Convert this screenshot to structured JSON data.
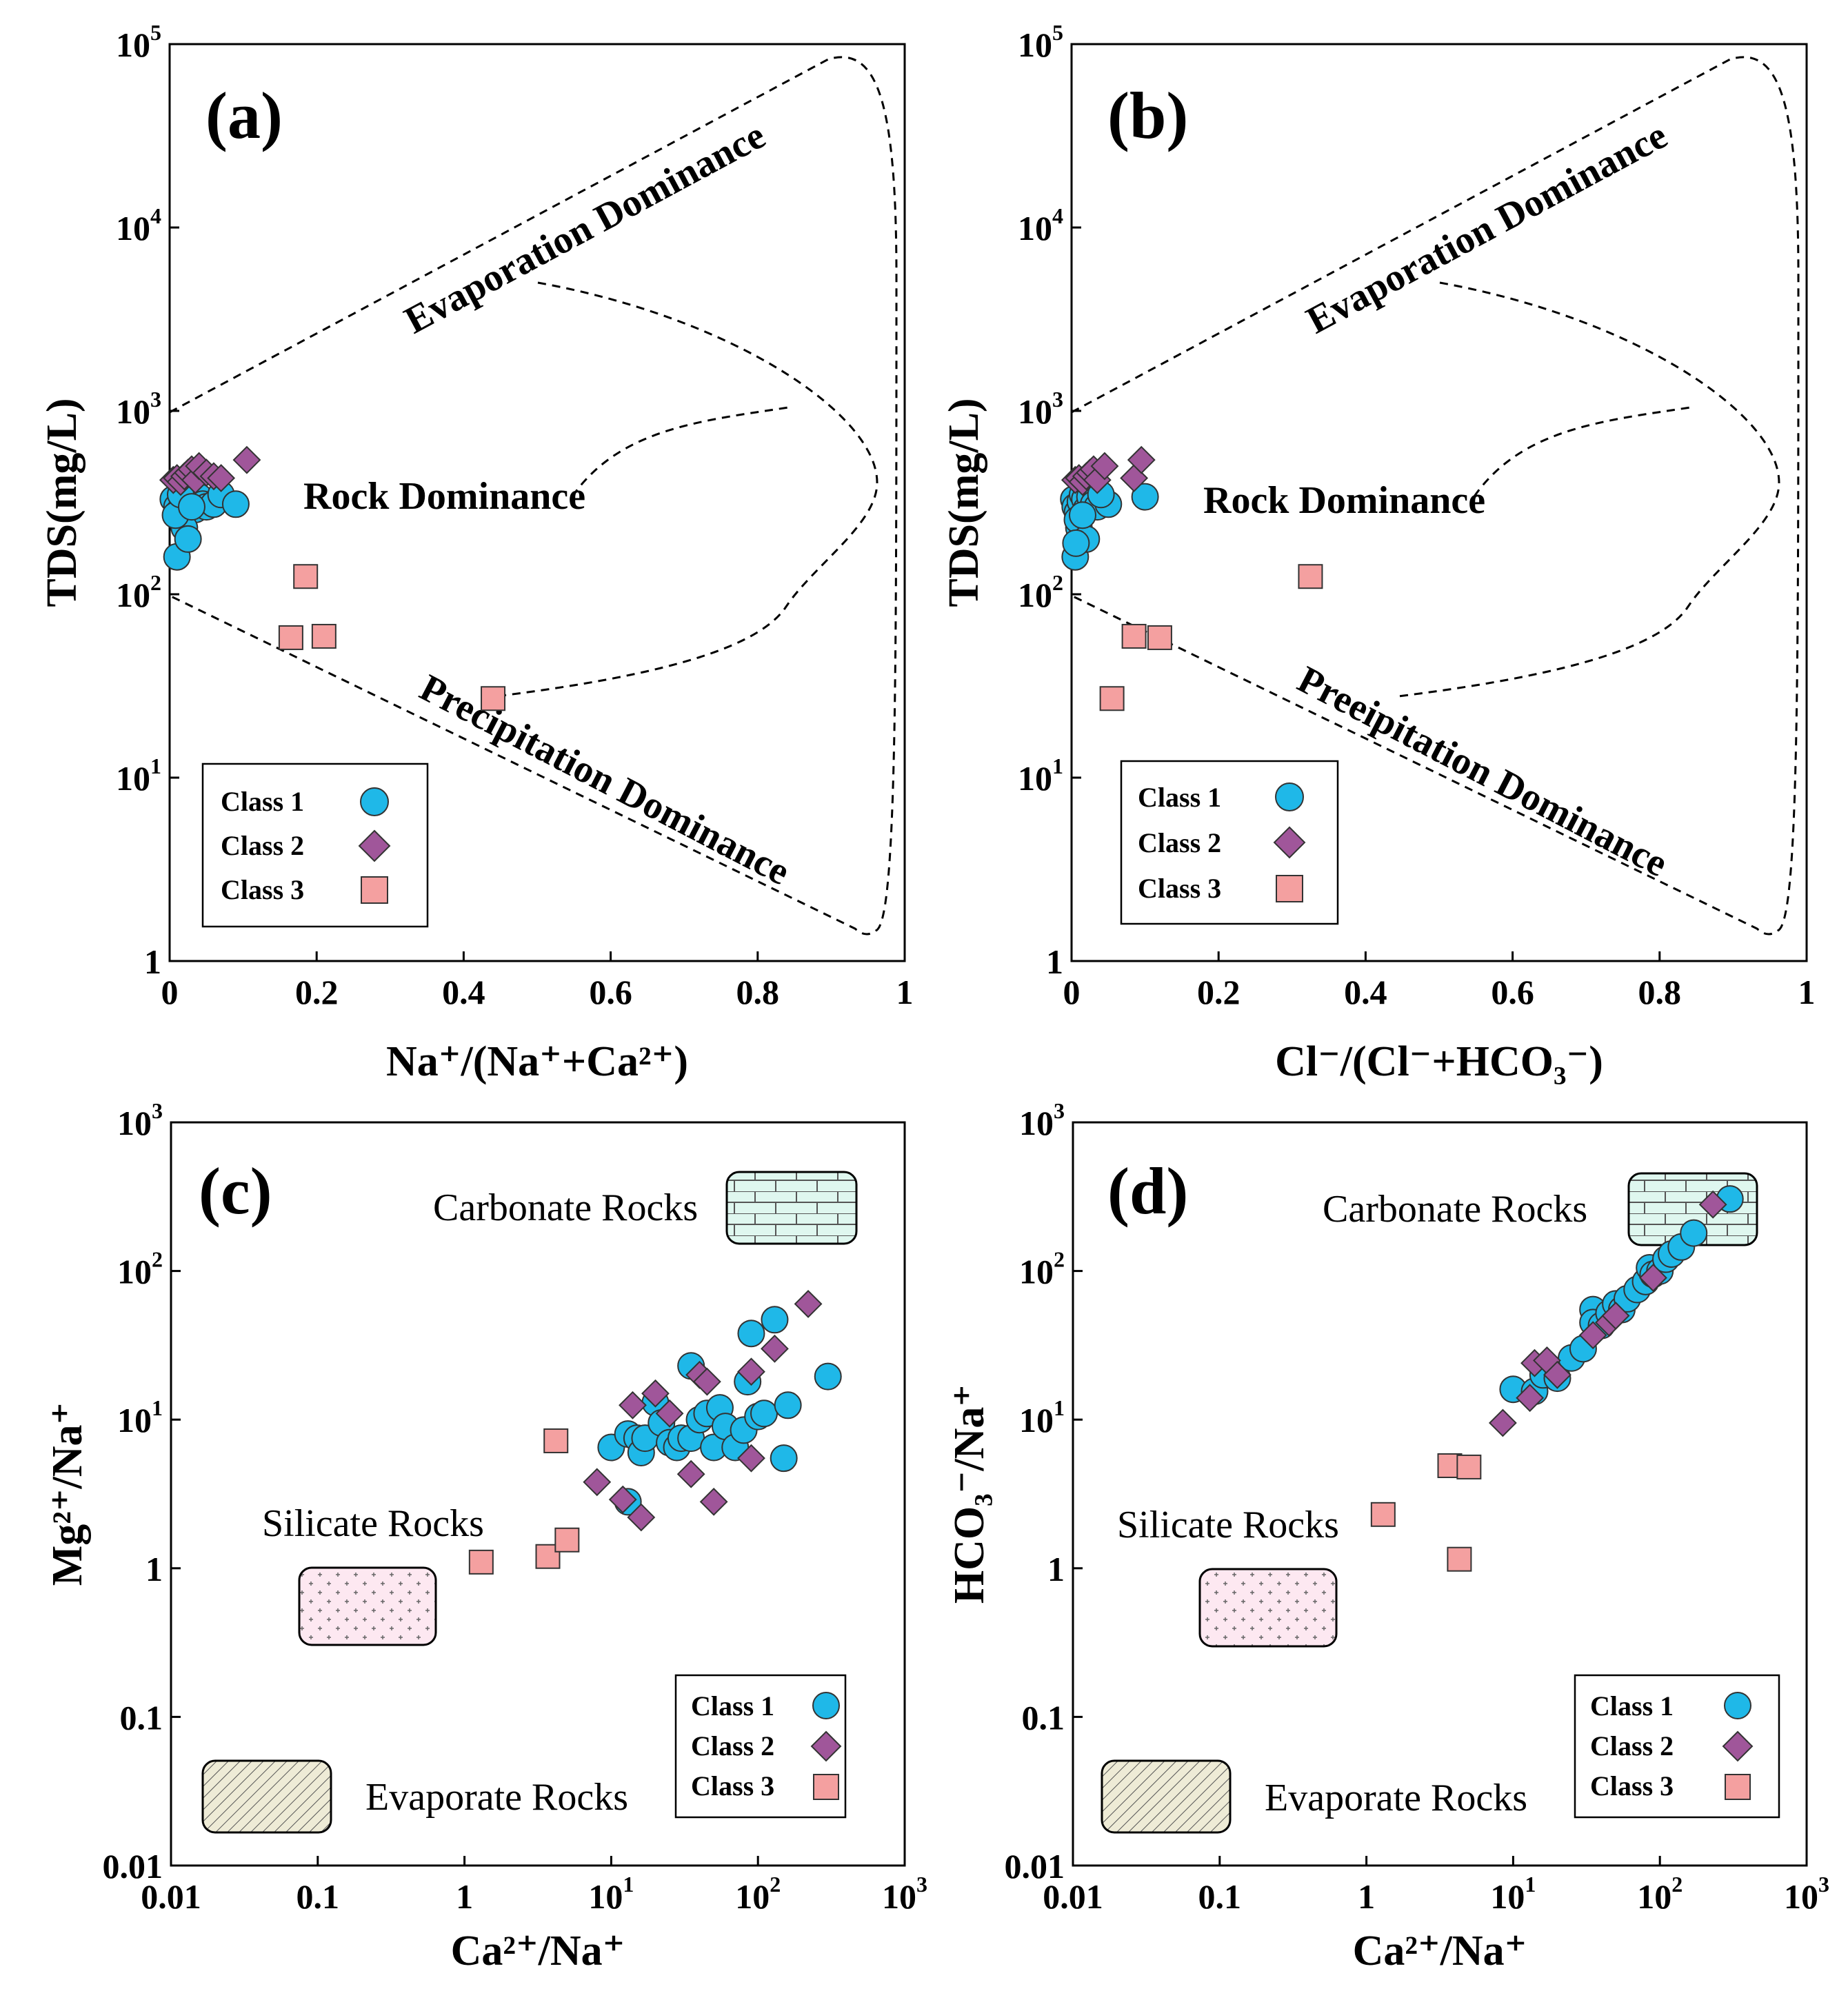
{
  "panels": [
    {
      "id": "a",
      "label": "(a)",
      "chart_data": {
        "type": "scatter",
        "xlabel": "Na⁺/(Na⁺+Ca²⁺)",
        "ylabel": "TDS(mg/L)",
        "xlim": [
          0,
          1
        ],
        "ylim": [
          1,
          100000
        ],
        "yscale": "log",
        "xticks": [
          "0",
          "0.2",
          "0.4",
          "0.6",
          "0.8",
          "1"
        ],
        "yticks": [
          "1",
          "10¹",
          "10²",
          "10³",
          "10⁴",
          "10⁵"
        ],
        "regions": [
          "Evaporation Dominance",
          "Rock Dominance",
          "Precipitation Dominance"
        ],
        "legend_position": "lower-left",
        "series": [
          {
            "name": "Class 1",
            "marker": "circle",
            "color": "#1fb8e8",
            "x": [
              0.005,
              0.01,
              0.012,
              0.015,
              0.02,
              0.025,
              0.03,
              0.035,
              0.04,
              0.045,
              0.05,
              0.06,
              0.07,
              0.09,
              0.01,
              0.02,
              0.008,
              0.015,
              0.025,
              0.03
            ],
            "y": [
              330,
              300,
              280,
              260,
              320,
              350,
              330,
              290,
              340,
              310,
              300,
              310,
              350,
              310,
              160,
              230,
              270,
              350,
              200,
              300
            ]
          },
          {
            "name": "Class 2",
            "marker": "diamond",
            "color": "#a0569a",
            "x": [
              0.005,
              0.01,
              0.015,
              0.02,
              0.025,
              0.03,
              0.035,
              0.04,
              0.05,
              0.06,
              0.07,
              0.105
            ],
            "y": [
              420,
              430,
              410,
              440,
              460,
              480,
              420,
              500,
              460,
              440,
              430,
              540
            ]
          },
          {
            "name": "Class 3",
            "marker": "square",
            "color": "#f4a0a0",
            "x": [
              0.165,
              0.185,
              0.21,
              0.44
            ],
            "y": [
              58,
              125,
              59,
              27
            ]
          }
        ]
      }
    },
    {
      "id": "b",
      "label": "(b)",
      "chart_data": {
        "type": "scatter",
        "xlabel": "Cl⁻/(Cl⁻+HCO₃⁻)",
        "ylabel": "TDS(mg/L)",
        "xlim": [
          0,
          1
        ],
        "ylim": [
          1,
          100000
        ],
        "yscale": "log",
        "xticks": [
          "0",
          "0.2",
          "0.4",
          "0.6",
          "0.8",
          "1"
        ],
        "yticks": [
          "1",
          "10¹",
          "10²",
          "10³",
          "10⁴",
          "10⁵"
        ],
        "regions": [
          "Evaporation Dominance",
          "Rock Dominance",
          "Preeipitation Dominance"
        ],
        "legend_position": "lower-left",
        "series": [
          {
            "name": "Class 1",
            "marker": "circle",
            "color": "#1fb8e8",
            "x": [
              0.003,
              0.005,
              0.008,
              0.01,
              0.012,
              0.015,
              0.018,
              0.02,
              0.025,
              0.03,
              0.035,
              0.05,
              0.1,
              0.005,
              0.01,
              0.008,
              0.02,
              0.04,
              0.015,
              0.006
            ],
            "y": [
              330,
              300,
              280,
              260,
              320,
              350,
              330,
              290,
              340,
              310,
              300,
              310,
              340,
              160,
              230,
              255,
              200,
              350,
              270,
              190
            ]
          },
          {
            "name": "Class 2",
            "marker": "diamond",
            "color": "#a0569a",
            "x": [
              0.005,
              0.01,
              0.015,
              0.02,
              0.025,
              0.03,
              0.035,
              0.045,
              0.085,
              0.095
            ],
            "y": [
              420,
              430,
              410,
              440,
              460,
              480,
              420,
              500,
              430,
              540
            ]
          },
          {
            "name": "Class 3",
            "marker": "square",
            "color": "#f4a0a0",
            "x": [
              0.055,
              0.085,
              0.12,
              0.325
            ],
            "y": [
              27,
              59,
              58,
              125
            ]
          }
        ]
      }
    },
    {
      "id": "c",
      "label": "(c)",
      "chart_data": {
        "type": "scatter",
        "xlabel": "Ca²⁺/Na⁺",
        "ylabel": "Mg²⁺/Na⁺",
        "xlim": [
          0.01,
          1000
        ],
        "ylim": [
          0.01,
          1000
        ],
        "xscale": "log",
        "yscale": "log",
        "xticks": [
          "0.01",
          "0.1",
          "1",
          "10¹",
          "10²",
          "10³"
        ],
        "yticks": [
          "0.01",
          "0.1",
          "1",
          "10¹",
          "10²",
          "10³"
        ],
        "regions": [
          "Carbonate Rocks",
          "Silicate Rocks",
          "Evaporate Rocks"
        ],
        "legend_position": "lower-right",
        "series": [
          {
            "name": "Class 1",
            "marker": "circle",
            "color": "#1fb8e8",
            "x": [
              10,
              13,
              15,
              16,
              17,
              20,
              22,
              25,
              28,
              30,
              35,
              35,
              40,
              45,
              50,
              55,
              60,
              70,
              80,
              85,
              90,
              100,
              110,
              130,
              150,
              160,
              300,
              13
            ],
            "y": [
              6.5,
              8,
              7.5,
              6,
              7.5,
              13,
              9.5,
              7,
              6.5,
              7.5,
              23,
              7.5,
              10,
              11,
              6.5,
              12,
              9,
              6.5,
              8.5,
              18,
              38,
              10.5,
              11,
              47,
              5.5,
              12.5,
              19.5,
              2.8
            ]
          },
          {
            "name": "Class 2",
            "marker": "diamond",
            "color": "#a0569a",
            "x": [
              8,
              12,
              14,
              16,
              20,
              25,
              35,
              40,
              45,
              50,
              90,
              90,
              130,
              220
            ],
            "y": [
              3.8,
              2.9,
              12.5,
              2.2,
              15,
              11,
              4.3,
              20,
              18,
              2.8,
              5.5,
              21,
              30,
              60
            ]
          },
          {
            "name": "Class 3",
            "marker": "square",
            "color": "#f4a0a0",
            "x": [
              1.3,
              3.7,
              4.2,
              5
            ],
            "y": [
              1.1,
              1.2,
              7.2,
              1.55
            ]
          }
        ]
      }
    },
    {
      "id": "d",
      "label": "(d)",
      "chart_data": {
        "type": "scatter",
        "xlabel": "Ca²⁺/Na⁺",
        "ylabel": "HCO₃⁻/Na⁺",
        "xlim": [
          0.01,
          1000
        ],
        "ylim": [
          0.01,
          1000
        ],
        "xscale": "log",
        "yscale": "log",
        "xticks": [
          "0.01",
          "0.1",
          "1",
          "10¹",
          "10²",
          "10³"
        ],
        "yticks": [
          "0.01",
          "0.1",
          "1",
          "10¹",
          "10²",
          "10³"
        ],
        "regions": [
          "Carbonate Rocks",
          "Silicate Rocks",
          "Evaporate Rocks"
        ],
        "legend_position": "lower-right",
        "series": [
          {
            "name": "Class 1",
            "marker": "circle",
            "color": "#1fb8e8",
            "x": [
              10,
              14,
              16,
              20,
              25,
              30,
              35,
              35,
              40,
              45,
              50,
              55,
              60,
              70,
              80,
              85,
              90,
              100,
              110,
              120,
              140,
              170,
              300
            ],
            "y": [
              16,
              15.5,
              20,
              19,
              26,
              30,
              55,
              45,
              43,
              52,
              60,
              55,
              65,
              75,
              85,
              105,
              95,
              100,
              120,
              130,
              145,
              180,
              305
            ]
          },
          {
            "name": "Class 2",
            "marker": "diamond",
            "color": "#a0569a",
            "x": [
              8.5,
              13,
              14,
              17,
              20,
              35,
              45,
              50,
              90,
              230
            ],
            "y": [
              9.5,
              14,
              24,
              25,
              20,
              37,
              45,
              50,
              90,
              280
            ]
          },
          {
            "name": "Class 3",
            "marker": "square",
            "color": "#f4a0a0",
            "x": [
              1.3,
              3.7,
              4.3,
              5
            ],
            "y": [
              2.3,
              4.9,
              1.15,
              4.8
            ]
          }
        ]
      }
    }
  ],
  "legend_labels": [
    "Class 1",
    "Class 2",
    "Class 3"
  ]
}
